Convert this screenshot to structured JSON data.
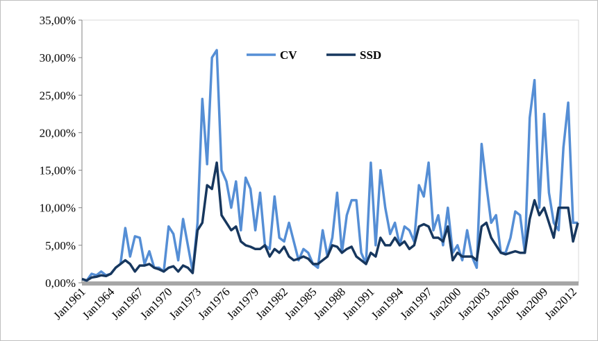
{
  "chart_data": {
    "type": "line",
    "categories": [
      "Jan1961",
      null,
      null,
      null,
      null,
      null,
      "Jan1964",
      null,
      null,
      null,
      null,
      null,
      "Jan1967",
      null,
      null,
      null,
      null,
      null,
      "Jan1970",
      null,
      null,
      null,
      null,
      null,
      "Jan1973",
      null,
      null,
      null,
      null,
      null,
      "Jan1976",
      null,
      null,
      null,
      null,
      null,
      "Jan1979",
      null,
      null,
      null,
      null,
      null,
      "Jan1982",
      null,
      null,
      null,
      null,
      null,
      "Jan1985",
      null,
      null,
      null,
      null,
      null,
      "Jan1988",
      null,
      null,
      null,
      null,
      null,
      "Jan1991",
      null,
      null,
      null,
      null,
      null,
      "Jan1994",
      null,
      null,
      null,
      null,
      null,
      "Jan1997",
      null,
      null,
      null,
      null,
      null,
      "Jan2000",
      null,
      null,
      null,
      null,
      null,
      "Jan2003",
      null,
      null,
      null,
      null,
      null,
      "Jan2006",
      null,
      null,
      null,
      null,
      null,
      "Jan2009",
      null,
      null,
      null,
      null,
      null,
      "Jan2012",
      null
    ],
    "series": [
      {
        "name": "CV",
        "color": "#558ed5",
        "values": [
          0.5,
          0.3,
          1.2,
          1.0,
          1.5,
          1.0,
          1.2,
          2.0,
          2.5,
          7.3,
          3.5,
          6.2,
          6.0,
          2.5,
          4.2,
          2.0,
          2.0,
          1.5,
          7.5,
          6.5,
          3.0,
          8.5,
          5.0,
          1.5,
          8.0,
          24.5,
          15.8,
          30.0,
          31.0,
          15.0,
          13.5,
          10.0,
          13.5,
          7.0,
          14.0,
          12.5,
          7.0,
          12.0,
          5.0,
          4.5,
          11.5,
          6.0,
          5.5,
          8.0,
          5.5,
          3.0,
          4.5,
          4.0,
          2.5,
          2.0,
          7.0,
          3.5,
          6.0,
          12.0,
          4.0,
          9.0,
          11.0,
          11.0,
          4.0,
          2.5,
          16.0,
          5.0,
          15.0,
          10.0,
          6.5,
          8.0,
          5.0,
          7.5,
          7.0,
          5.5,
          13.0,
          11.5,
          16.0,
          7.0,
          9.0,
          5.0,
          10.0,
          4.0,
          5.0,
          3.0,
          7.0,
          3.5,
          2.0,
          18.5,
          13.0,
          8.0,
          9.0,
          4.0,
          4.0,
          6.0,
          9.5,
          9.0,
          4.0,
          22.0,
          27.0,
          10.0,
          22.5,
          12.0,
          8.0,
          7.0,
          18.0,
          24.0,
          8.0,
          8.0
        ]
      },
      {
        "name": "SSD",
        "color": "#17375e",
        "values": [
          0.5,
          0.3,
          0.7,
          0.8,
          1.0,
          0.9,
          1.2,
          2.0,
          2.5,
          3.0,
          2.5,
          1.5,
          2.3,
          2.3,
          2.5,
          2.0,
          1.8,
          1.5,
          2.0,
          2.2,
          1.5,
          2.3,
          2.0,
          1.3,
          7.0,
          8.0,
          13.0,
          12.5,
          16.0,
          9.0,
          8.0,
          7.0,
          7.5,
          5.5,
          5.0,
          4.8,
          4.5,
          4.5,
          5.0,
          3.5,
          4.5,
          4.0,
          4.8,
          3.5,
          3.0,
          3.2,
          3.5,
          3.2,
          2.5,
          2.5,
          3.0,
          3.5,
          5.0,
          4.8,
          4.0,
          4.5,
          4.8,
          3.5,
          3.0,
          2.5,
          4.0,
          3.5,
          6.0,
          5.0,
          5.0,
          6.0,
          5.0,
          5.5,
          4.5,
          5.0,
          7.5,
          7.8,
          7.5,
          6.0,
          6.0,
          5.5,
          7.5,
          3.0,
          4.0,
          3.5,
          3.5,
          3.5,
          3.0,
          7.5,
          8.0,
          6.0,
          5.0,
          4.0,
          3.8,
          4.0,
          4.2,
          4.0,
          4.0,
          8.5,
          11.0,
          9.0,
          10.0,
          8.0,
          6.0,
          10.0,
          10.0,
          10.0,
          5.5,
          8.0
        ]
      }
    ],
    "ylim": [
      0,
      35
    ],
    "yticks": [
      {
        "value": 0,
        "label": "0,00%"
      },
      {
        "value": 5,
        "label": "5,00%"
      },
      {
        "value": 10,
        "label": "10,00%"
      },
      {
        "value": 15,
        "label": "15,00%"
      },
      {
        "value": 20,
        "label": "20,00%"
      },
      {
        "value": 25,
        "label": "25,00%"
      },
      {
        "value": 30,
        "label": "30,00%"
      },
      {
        "value": 35,
        "label": "35,00%"
      }
    ],
    "legend": "top"
  }
}
